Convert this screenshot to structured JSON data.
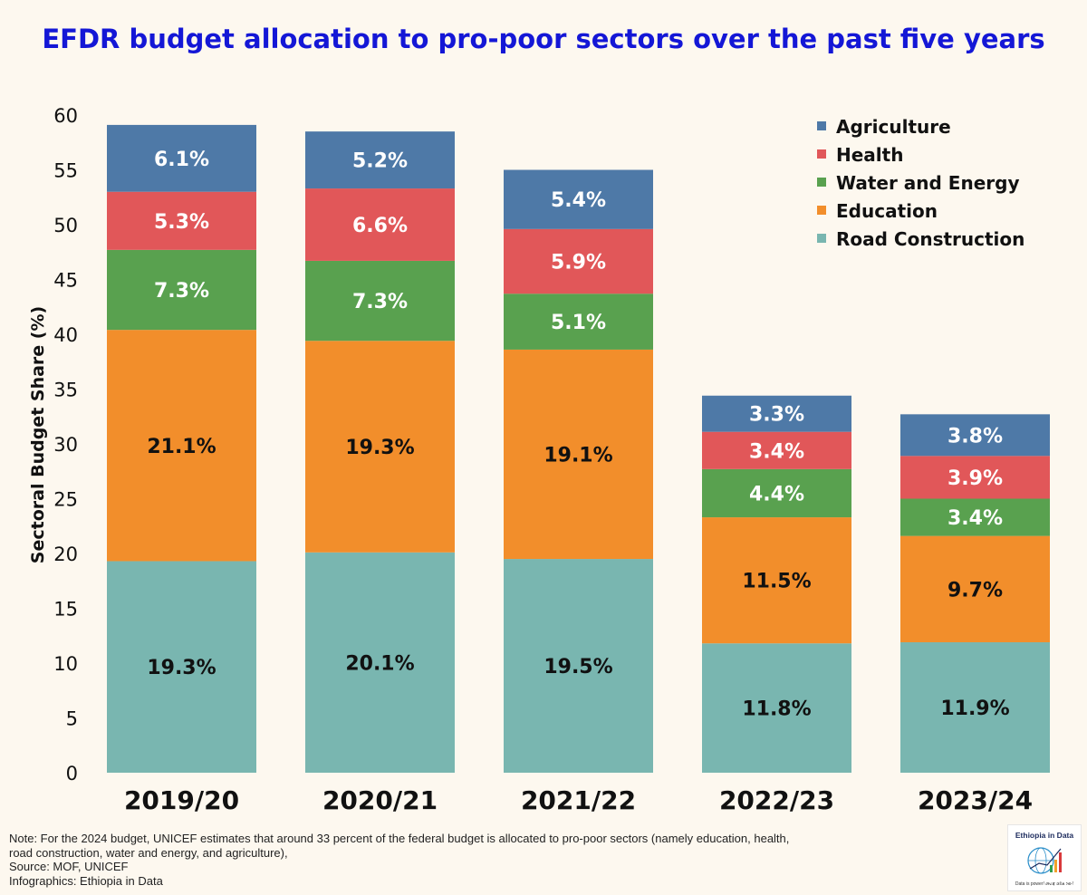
{
  "chart_data": {
    "type": "bar",
    "stacked": true,
    "title": "EFDR budget allocation to pro-poor sectors over the past five years",
    "ylabel": "Sectoral Budget Share (%)",
    "xlabel": "",
    "ylim": [
      0,
      60
    ],
    "yticks": [
      0,
      5,
      10,
      15,
      20,
      25,
      30,
      35,
      40,
      45,
      50,
      55,
      60
    ],
    "categories": [
      "2019/20",
      "2020/21",
      "2021/22",
      "2022/23",
      "2023/24"
    ],
    "series": [
      {
        "name": "Road Construction",
        "color": "#79b6b0",
        "values": [
          19.3,
          20.1,
          19.5,
          11.8,
          11.9
        ],
        "labels": [
          "19.3%",
          "20.1%",
          "19.5%",
          "11.8%",
          "11.9%"
        ]
      },
      {
        "name": "Education",
        "color": "#f28e2b",
        "values": [
          21.1,
          19.3,
          19.1,
          11.5,
          9.7
        ],
        "labels": [
          "21.1%",
          "19.3%",
          "19.1%",
          "11.5%",
          "9.7%"
        ]
      },
      {
        "name": "Water and Energy",
        "color": "#59a14f",
        "values": [
          7.3,
          7.3,
          5.1,
          4.4,
          3.4
        ],
        "labels": [
          "7.3%",
          "7.3%",
          "5.1%",
          "4.4%",
          "3.4%"
        ]
      },
      {
        "name": "Health",
        "color": "#e15759",
        "values": [
          5.3,
          6.6,
          5.9,
          3.4,
          3.9
        ],
        "labels": [
          "5.3%",
          "6.6%",
          "5.9%",
          "3.4%",
          "3.9%"
        ]
      },
      {
        "name": "Agriculture",
        "color": "#4e79a7",
        "values": [
          6.1,
          5.2,
          5.4,
          3.3,
          3.8
        ],
        "labels": [
          "6.1%",
          "5.2%",
          "5.4%",
          "3.3%",
          "3.8%"
        ]
      }
    ],
    "legend": {
      "position": "top-right",
      "order": [
        "Agriculture",
        "Health",
        "Water and Energy",
        "Education",
        "Road Construction"
      ]
    },
    "grid": false
  },
  "notes": [
    "Note: For the 2024 budget, UNICEF estimates that around 33 percent of the federal budget is allocated to pro-poor sectors (namely education, health,",
    "road construction, water and energy, and agriculture),",
    "Source: MOF, UNICEF",
    "Infographics: Ethiopia in Data"
  ],
  "logo": {
    "title": "Ethiopia in Data",
    "tagline": "Data is power! መረጃ ኃይል ነው!"
  },
  "colors": {
    "background": "#fdf8ef",
    "title": "#1417d6",
    "label_light": "#ffffff",
    "label_dark": "#111111"
  }
}
